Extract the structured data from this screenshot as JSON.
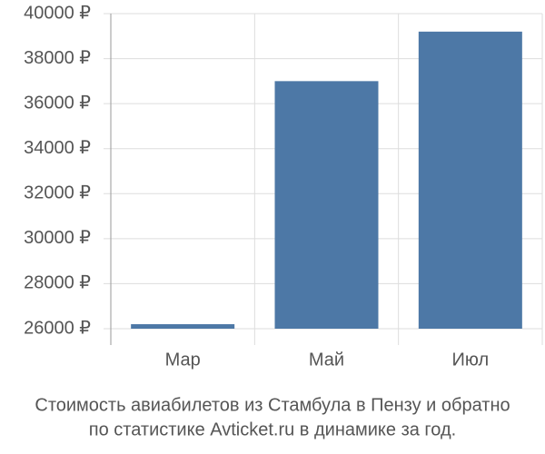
{
  "chart_data": {
    "type": "bar",
    "title": [
      "Стоимость авиабилетов из Стамбула в Пензу и обратно",
      "по статистике Avticket.ru в динамике за год."
    ],
    "categories": [
      "Мар",
      "Май",
      "Июл"
    ],
    "values": [
      26200,
      37000,
      39200
    ],
    "color": "#4d78a6",
    "ylim": [
      26000,
      40000
    ],
    "yticks": [
      {
        "value": 26000,
        "label": "26000 ₽"
      },
      {
        "value": 28000,
        "label": "28000 ₽"
      },
      {
        "value": 30000,
        "label": "30000 ₽"
      },
      {
        "value": 32000,
        "label": "32000 ₽"
      },
      {
        "value": 34000,
        "label": "34000 ₽"
      },
      {
        "value": 36000,
        "label": "36000 ₽"
      },
      {
        "value": 38000,
        "label": "38000 ₽"
      },
      {
        "value": 40000,
        "label": "40000 ₽"
      }
    ],
    "grid": true
  }
}
